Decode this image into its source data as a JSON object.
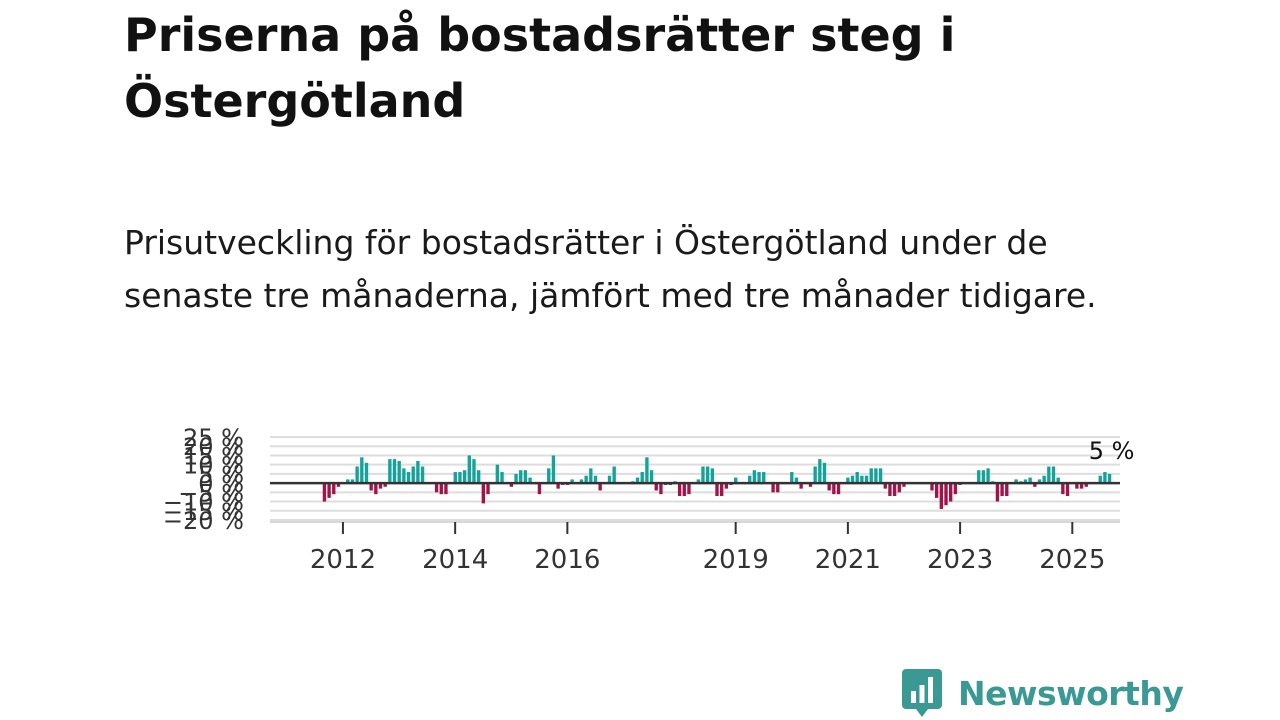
{
  "header": {
    "title": "Priserna på bostadsrätter steg i Östergötland",
    "subtitle": "Prisutveckling för bostadsrätter i Östergötland under de senaste tre månaderna, jämfört med tre månader tidigare."
  },
  "colors": {
    "positive": "#14a39a",
    "negative": "#a3134a",
    "zero_line": "#333333",
    "grid": "#dddddd",
    "brand": "#3a9a93"
  },
  "chart_data": {
    "type": "bar",
    "title": "Priserna på bostadsrätter steg i Östergötland",
    "subtitle": "Prisutveckling för bostadsrätter i Östergötland under de senaste tre månaderna, jämfört med tre månader tidigare.",
    "xlabel": "",
    "ylabel": "",
    "unit": "%",
    "x_start": 2011.67,
    "x_step": 0.0833,
    "xlim": [
      2010.7,
      2025.85
    ],
    "ylim": [
      -20,
      25
    ],
    "grid": true,
    "yticks": [
      -20,
      -15,
      -10,
      -5,
      0,
      5,
      10,
      15,
      20,
      25
    ],
    "ytick_labels": [
      "−20 %",
      "−15 %",
      "−10 %",
      "−5 %",
      "0 %",
      "5 %",
      "10 %",
      "15 %",
      "20 %",
      "25 %"
    ],
    "xticks": [
      2012,
      2014,
      2016,
      2019,
      2021,
      2023,
      2025
    ],
    "xtick_labels": [
      "2012",
      "2014",
      "2016",
      "2019",
      "2021",
      "2023",
      "2025"
    ],
    "callout": {
      "label": "5 %",
      "value": 5
    },
    "values": [
      -10,
      -8,
      -6,
      -2,
      0,
      2,
      2,
      9,
      14,
      11,
      -4,
      -6,
      -3,
      -2,
      13,
      13,
      12,
      8,
      6,
      9,
      12,
      9,
      0,
      0,
      -5,
      -6,
      -6,
      0,
      6,
      6,
      7,
      15,
      13,
      7,
      -11,
      -6,
      0,
      10,
      6,
      0,
      -2,
      5,
      7,
      7,
      3,
      0,
      -6,
      0,
      8,
      15,
      -3,
      -1,
      -1,
      2,
      0,
      2,
      4,
      8,
      4,
      -4,
      0,
      4,
      9,
      0,
      0,
      0,
      1,
      3,
      6,
      14,
      7,
      -4,
      -6,
      -1,
      -1,
      1,
      -7,
      -7,
      -6,
      0,
      2,
      9,
      9,
      8,
      -7,
      -7,
      -3,
      -1,
      3,
      0,
      0,
      4,
      7,
      6,
      6,
      0,
      -5,
      -5,
      0,
      0,
      6,
      3,
      -3,
      0,
      -2,
      9,
      13,
      11,
      -4,
      -6,
      -6,
      0,
      3,
      4,
      6,
      4,
      4,
      8,
      8,
      8,
      -3,
      -7,
      -7,
      -5,
      -2,
      0,
      0,
      0,
      0,
      0,
      -4,
      -8,
      -14,
      -12,
      -10,
      -6,
      -1,
      0,
      0,
      0,
      7,
      7,
      8,
      1,
      -10,
      -7,
      -7,
      0,
      2,
      1,
      2,
      3,
      -2,
      2,
      4,
      9,
      9,
      3,
      -6,
      -7,
      0,
      -3,
      -3,
      -2,
      0,
      0,
      4,
      6,
      5
    ]
  },
  "branding": {
    "name": "Newsworthy",
    "icon": "newsworthy-logo-icon"
  }
}
